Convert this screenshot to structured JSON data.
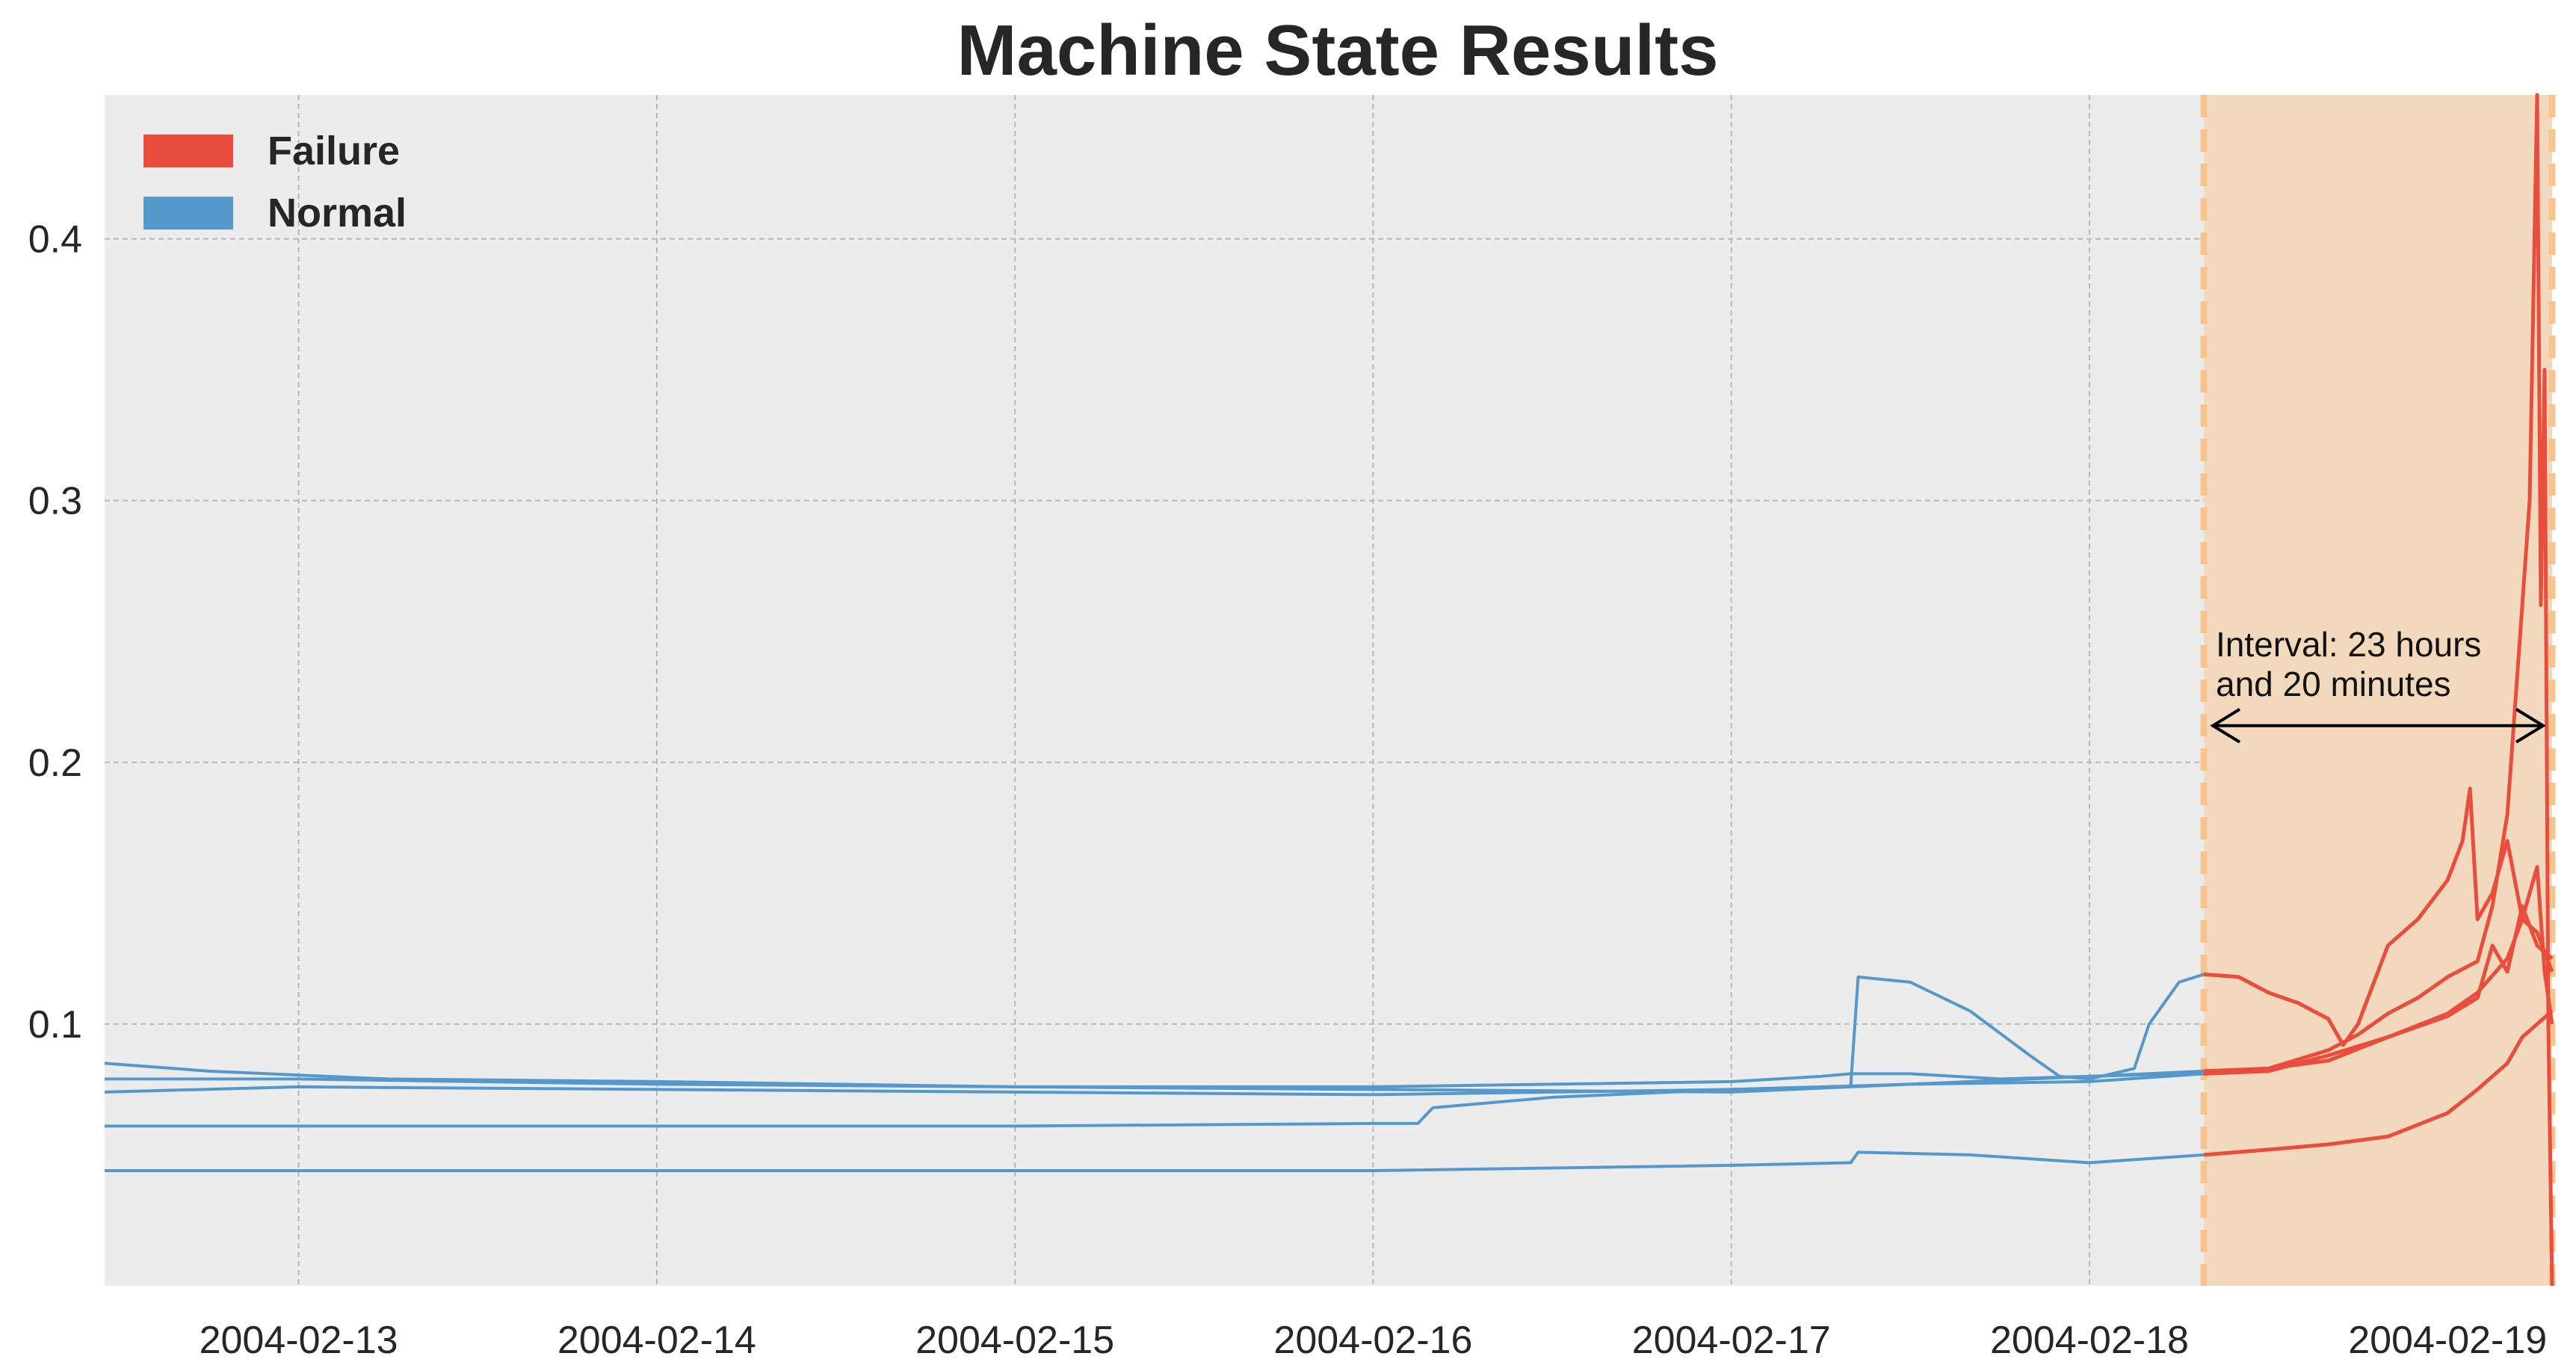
{
  "chart_data": {
    "type": "line",
    "title": "Machine State Results",
    "xlabel": "",
    "ylabel": "",
    "x_range": [
      "2004-02-12 11:00",
      "2004-02-19 07:00"
    ],
    "ylim": [
      0.0,
      0.455
    ],
    "x_ticks": [
      "2004-02-13",
      "2004-02-14",
      "2004-02-15",
      "2004-02-16",
      "2004-02-17",
      "2004-02-18",
      "2004-02-19"
    ],
    "y_ticks": [
      "0.1",
      "0.2",
      "0.3",
      "0.4"
    ],
    "y_tick_values": [
      0.1,
      0.2,
      0.3,
      0.4
    ],
    "grid": true,
    "legend_position": "top-left",
    "legend": [
      {
        "label": "Failure",
        "color": "#e84d3d"
      },
      {
        "label": "Normal",
        "color": "#5599cc"
      }
    ],
    "failure_interval": {
      "start": "2004-02-18 07:40",
      "end": "2004-02-19 07:00",
      "shade_color": "#f2d9bd",
      "line_color": "#f7c48e"
    },
    "annotation": {
      "line1": "Interval: 23 hours",
      "line2": "and 20 minutes",
      "arrow_start": "2004-02-18 07:40",
      "arrow_end": "2004-02-19 07:00",
      "arrow_y": 0.214
    },
    "series": [
      {
        "color_normal": "#5599cc",
        "color_failure": "#e84d3d",
        "points": [
          [
            "2004-02-12 11:00",
            0.085
          ],
          [
            "2004-02-12 18:00",
            0.082
          ],
          [
            "2004-02-13 06:00",
            0.079
          ],
          [
            "2004-02-14 00:00",
            0.078
          ],
          [
            "2004-02-14 12:00",
            0.077
          ],
          [
            "2004-02-15 00:00",
            0.076
          ],
          [
            "2004-02-15 12:00",
            0.076
          ],
          [
            "2004-02-16 00:00",
            0.076
          ],
          [
            "2004-02-16 12:00",
            0.077
          ],
          [
            "2004-02-17 00:00",
            0.078
          ],
          [
            "2004-02-17 06:00",
            0.08
          ],
          [
            "2004-02-17 08:00",
            0.081
          ],
          [
            "2004-02-17 12:00",
            0.081
          ],
          [
            "2004-02-17 18:00",
            0.079
          ],
          [
            "2004-02-18 00:00",
            0.08
          ],
          [
            "2004-02-18 06:00",
            0.081
          ],
          [
            "2004-02-18 07:40",
            0.081
          ],
          [
            "2004-02-18 12:00",
            0.083
          ],
          [
            "2004-02-18 16:00",
            0.09
          ],
          [
            "2004-02-18 18:00",
            0.096
          ],
          [
            "2004-02-18 20:00",
            0.104
          ],
          [
            "2004-02-18 22:00",
            0.11
          ],
          [
            "2004-02-19 00:00",
            0.118
          ],
          [
            "2004-02-19 02:00",
            0.124
          ],
          [
            "2004-02-19 03:00",
            0.145
          ],
          [
            "2004-02-19 04:00",
            0.18
          ],
          [
            "2004-02-19 05:00",
            0.26
          ],
          [
            "2004-02-19 05:30",
            0.3
          ],
          [
            "2004-02-19 06:00",
            0.455
          ],
          [
            "2004-02-19 06:15",
            0.26
          ],
          [
            "2004-02-19 06:30",
            0.35
          ],
          [
            "2004-02-19 06:45",
            0.1
          ],
          [
            "2004-02-19 07:00",
            0.0
          ]
        ]
      },
      {
        "color_normal": "#5599cc",
        "color_failure": "#e84d3d",
        "points": [
          [
            "2004-02-12 11:00",
            0.074
          ],
          [
            "2004-02-13 00:00",
            0.076
          ],
          [
            "2004-02-14 00:00",
            0.075
          ],
          [
            "2004-02-15 00:00",
            0.074
          ],
          [
            "2004-02-16 00:00",
            0.073
          ],
          [
            "2004-02-17 00:00",
            0.075
          ],
          [
            "2004-02-17 08:00",
            0.076
          ],
          [
            "2004-02-17 08:30",
            0.118
          ],
          [
            "2004-02-17 12:00",
            0.116
          ],
          [
            "2004-02-17 16:00",
            0.105
          ],
          [
            "2004-02-17 20:00",
            0.088
          ],
          [
            "2004-02-17 22:00",
            0.08
          ],
          [
            "2004-02-18 00:00",
            0.079
          ],
          [
            "2004-02-18 03:00",
            0.083
          ],
          [
            "2004-02-18 04:00",
            0.1
          ],
          [
            "2004-02-18 06:00",
            0.116
          ],
          [
            "2004-02-18 07:40",
            0.119
          ],
          [
            "2004-02-18 10:00",
            0.118
          ],
          [
            "2004-02-18 12:00",
            0.112
          ],
          [
            "2004-02-18 14:00",
            0.108
          ],
          [
            "2004-02-18 16:00",
            0.102
          ],
          [
            "2004-02-18 17:00",
            0.092
          ],
          [
            "2004-02-18 18:00",
            0.1
          ],
          [
            "2004-02-18 20:00",
            0.13
          ],
          [
            "2004-02-18 22:00",
            0.14
          ],
          [
            "2004-02-19 00:00",
            0.155
          ],
          [
            "2004-02-19 01:00",
            0.17
          ],
          [
            "2004-02-19 01:30",
            0.19
          ],
          [
            "2004-02-19 02:00",
            0.14
          ],
          [
            "2004-02-19 03:00",
            0.15
          ],
          [
            "2004-02-19 04:00",
            0.17
          ],
          [
            "2004-02-19 05:00",
            0.14
          ],
          [
            "2004-02-19 05:30",
            0.15
          ],
          [
            "2004-02-19 06:00",
            0.16
          ],
          [
            "2004-02-19 06:30",
            0.12
          ],
          [
            "2004-02-19 07:00",
            0.1
          ]
        ]
      },
      {
        "color_normal": "#5599cc",
        "color_failure": "#e84d3d",
        "points": [
          [
            "2004-02-12 11:00",
            0.079
          ],
          [
            "2004-02-13 00:00",
            0.079
          ],
          [
            "2004-02-14 00:00",
            0.077
          ],
          [
            "2004-02-15 00:00",
            0.076
          ],
          [
            "2004-02-16 00:00",
            0.075
          ],
          [
            "2004-02-17 00:00",
            0.074
          ],
          [
            "2004-02-17 12:00",
            0.077
          ],
          [
            "2004-02-18 00:00",
            0.078
          ],
          [
            "2004-02-18 07:40",
            0.081
          ],
          [
            "2004-02-18 12:00",
            0.082
          ],
          [
            "2004-02-18 16:00",
            0.088
          ],
          [
            "2004-02-18 20:00",
            0.095
          ],
          [
            "2004-02-19 00:00",
            0.103
          ],
          [
            "2004-02-19 02:00",
            0.11
          ],
          [
            "2004-02-19 03:00",
            0.13
          ],
          [
            "2004-02-19 04:00",
            0.12
          ],
          [
            "2004-02-19 05:00",
            0.145
          ],
          [
            "2004-02-19 06:00",
            0.13
          ],
          [
            "2004-02-19 07:00",
            0.125
          ]
        ]
      },
      {
        "color_normal": "#5599cc",
        "color_failure": "#e84d3d",
        "points": [
          [
            "2004-02-12 11:00",
            0.061
          ],
          [
            "2004-02-13 00:00",
            0.061
          ],
          [
            "2004-02-14 00:00",
            0.061
          ],
          [
            "2004-02-15 00:00",
            0.061
          ],
          [
            "2004-02-16 00:00",
            0.062
          ],
          [
            "2004-02-16 03:00",
            0.062
          ],
          [
            "2004-02-16 04:00",
            0.068
          ],
          [
            "2004-02-16 12:00",
            0.072
          ],
          [
            "2004-02-17 00:00",
            0.075
          ],
          [
            "2004-02-17 12:00",
            0.077
          ],
          [
            "2004-02-18 00:00",
            0.08
          ],
          [
            "2004-02-18 07:40",
            0.082
          ],
          [
            "2004-02-18 12:00",
            0.083
          ],
          [
            "2004-02-18 16:00",
            0.086
          ],
          [
            "2004-02-18 20:00",
            0.095
          ],
          [
            "2004-02-19 00:00",
            0.104
          ],
          [
            "2004-02-19 02:00",
            0.112
          ],
          [
            "2004-02-19 04:00",
            0.125
          ],
          [
            "2004-02-19 05:00",
            0.14
          ],
          [
            "2004-02-19 06:00",
            0.135
          ],
          [
            "2004-02-19 07:00",
            0.12
          ]
        ]
      },
      {
        "color_normal": "#5599cc",
        "color_failure": "#e84d3d",
        "points": [
          [
            "2004-02-12 11:00",
            0.044
          ],
          [
            "2004-02-13 00:00",
            0.044
          ],
          [
            "2004-02-14 00:00",
            0.044
          ],
          [
            "2004-02-15 00:00",
            0.044
          ],
          [
            "2004-02-16 00:00",
            0.044
          ],
          [
            "2004-02-17 00:00",
            0.046
          ],
          [
            "2004-02-17 08:00",
            0.047
          ],
          [
            "2004-02-17 08:30",
            0.051
          ],
          [
            "2004-02-17 16:00",
            0.05
          ],
          [
            "2004-02-18 00:00",
            0.047
          ],
          [
            "2004-02-18 07:40",
            0.05
          ],
          [
            "2004-02-18 12:00",
            0.052
          ],
          [
            "2004-02-18 16:00",
            0.054
          ],
          [
            "2004-02-18 20:00",
            0.057
          ],
          [
            "2004-02-19 00:00",
            0.066
          ],
          [
            "2004-02-19 02:00",
            0.075
          ],
          [
            "2004-02-19 04:00",
            0.085
          ],
          [
            "2004-02-19 05:00",
            0.095
          ],
          [
            "2004-02-19 06:00",
            0.1
          ],
          [
            "2004-02-19 07:00",
            0.105
          ]
        ]
      }
    ]
  }
}
